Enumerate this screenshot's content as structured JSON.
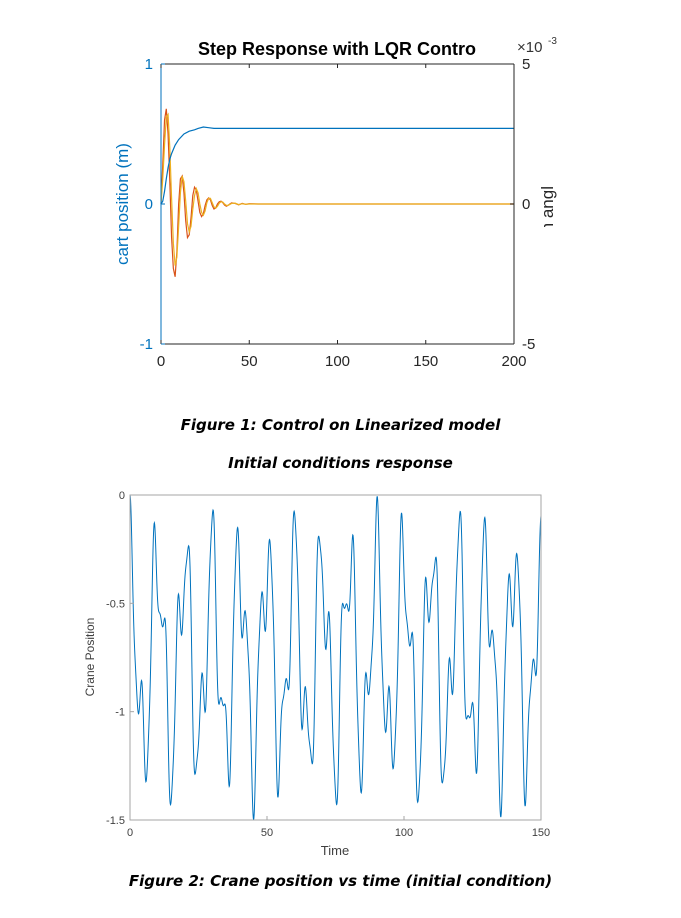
{
  "colors": {
    "cart": "#0072BD",
    "pendulum_a": "#D95319",
    "pendulum_b": "#EDB120",
    "crane": "#0072BD",
    "axis_tick_right": "#333333"
  },
  "captions": {
    "figure1": "Figure 1: Control on Linearized model",
    "section": "Initial conditions response",
    "figure2": "Figure 2: Crane position vs time (initial condition)"
  },
  "chart_data": [
    {
      "type": "line",
      "title": "Step Response with LQR Contro",
      "xlabel": "",
      "ylabel_left": "cart position (m)",
      "ylabel_right": "pendulum angle (radians",
      "right_exponent_base": "×10",
      "right_exponent_power": "-3",
      "xlim": [
        0,
        200
      ],
      "ylim_left": [
        -1,
        1
      ],
      "ylim_right": [
        -5,
        5
      ],
      "xticks": [
        "0",
        "50",
        "100",
        "150",
        "200"
      ],
      "yticks_left": [
        "-1",
        "0",
        "1"
      ],
      "yticks_right": [
        "-5",
        "0",
        "5"
      ],
      "grid": false,
      "series": [
        {
          "axis": "left",
          "points": [
            [
              0,
              0
            ],
            [
              1,
              0.02
            ],
            [
              2,
              0.09
            ],
            [
              3,
              0.18
            ],
            [
              4,
              0.26
            ],
            [
              5,
              0.32
            ],
            [
              6,
              0.36
            ],
            [
              8,
              0.42
            ],
            [
              10,
              0.46
            ],
            [
              13,
              0.5
            ],
            [
              16,
              0.52
            ],
            [
              19,
              0.53
            ],
            [
              21,
              0.54
            ],
            [
              24,
              0.55
            ],
            [
              27,
              0.545
            ],
            [
              30,
              0.54
            ],
            [
              40,
              0.54
            ],
            [
              70,
              0.54
            ],
            [
              200,
              0.54
            ]
          ]
        },
        {
          "axis": "right",
          "points": [
            [
              0,
              0
            ],
            [
              1,
              1.4
            ],
            [
              2,
              3.0
            ],
            [
              3,
              3.4
            ],
            [
              4,
              2.5
            ],
            [
              5,
              0.8
            ],
            [
              6,
              -1.2
            ],
            [
              7,
              -2.3
            ],
            [
              8,
              -2.6
            ],
            [
              9,
              -1.7
            ],
            [
              10,
              0.0
            ],
            [
              11,
              0.9
            ],
            [
              12,
              1.0
            ],
            [
              13,
              0.4
            ],
            [
              14,
              -0.6
            ],
            [
              15,
              -1.2
            ],
            [
              16,
              -1.1
            ],
            [
              17,
              -0.5
            ],
            [
              18,
              0.3
            ],
            [
              19,
              0.6
            ],
            [
              20,
              0.5
            ],
            [
              21,
              0.1
            ],
            [
              22,
              -0.3
            ],
            [
              23,
              -0.45
            ],
            [
              24,
              -0.35
            ],
            [
              25,
              -0.05
            ],
            [
              26,
              0.15
            ],
            [
              27,
              0.22
            ],
            [
              28,
              0.15
            ],
            [
              29,
              -0.05
            ],
            [
              30,
              -0.18
            ],
            [
              31,
              -0.14
            ],
            [
              32,
              0.0
            ],
            [
              33,
              0.08
            ],
            [
              34,
              0.1
            ],
            [
              35,
              0.05
            ],
            [
              36,
              -0.04
            ],
            [
              37,
              -0.08
            ],
            [
              38,
              -0.05
            ],
            [
              39,
              0.0
            ],
            [
              40,
              0.04
            ],
            [
              42,
              0.02
            ],
            [
              44,
              -0.03
            ],
            [
              46,
              0.02
            ],
            [
              48,
              -0.01
            ],
            [
              50,
              0.01
            ],
            [
              55,
              0.0
            ],
            [
              60,
              0.0
            ],
            [
              70,
              0.0
            ],
            [
              200,
              0.0
            ]
          ]
        },
        {
          "axis": "right",
          "points": [
            [
              0,
              0
            ],
            [
              1,
              0.9
            ],
            [
              2,
              2.1
            ],
            [
              3,
              3.1
            ],
            [
              4,
              3.2
            ],
            [
              5,
              2.0
            ],
            [
              6,
              0.2
            ],
            [
              7,
              -1.4
            ],
            [
              8,
              -2.2
            ],
            [
              9,
              -1.9
            ],
            [
              10,
              -0.8
            ],
            [
              11,
              0.4
            ],
            [
              12,
              1.0
            ],
            [
              13,
              0.8
            ],
            [
              14,
              0.1
            ],
            [
              15,
              -0.7
            ],
            [
              16,
              -1.0
            ],
            [
              17,
              -0.8
            ],
            [
              18,
              -0.2
            ],
            [
              19,
              0.3
            ],
            [
              20,
              0.55
            ],
            [
              21,
              0.4
            ],
            [
              22,
              0.0
            ],
            [
              23,
              -0.3
            ],
            [
              24,
              -0.4
            ],
            [
              25,
              -0.25
            ],
            [
              26,
              0.05
            ],
            [
              27,
              0.2
            ],
            [
              28,
              0.2
            ],
            [
              29,
              0.05
            ],
            [
              30,
              -0.1
            ],
            [
              31,
              -0.15
            ],
            [
              32,
              -0.08
            ],
            [
              33,
              0.03
            ],
            [
              34,
              0.08
            ],
            [
              35,
              0.07
            ],
            [
              36,
              0.0
            ],
            [
              37,
              -0.05
            ],
            [
              38,
              -0.05
            ],
            [
              40,
              0.02
            ],
            [
              42,
              0.03
            ],
            [
              44,
              -0.02
            ],
            [
              46,
              0.01
            ],
            [
              48,
              -0.01
            ],
            [
              50,
              0.0
            ],
            [
              60,
              0.0
            ],
            [
              70,
              0.0
            ],
            [
              200,
              0.0
            ]
          ]
        }
      ]
    },
    {
      "type": "line",
      "title": "",
      "xlabel": "Time",
      "ylabel": "Crane Position",
      "xlim": [
        0,
        150
      ],
      "ylim": [
        -1.5,
        0
      ],
      "xticks": [
        "0",
        "50",
        "100",
        "150"
      ],
      "yticks": [
        "-1.5",
        "-1",
        "-0.5",
        "0"
      ],
      "grid": false,
      "series": [
        {
          "generator": {
            "offset": -0.75,
            "components": [
              {
                "amplitude": 0.45,
                "period": 10.0,
                "phase": 1.5708
              },
              {
                "amplitude": 0.24,
                "period": 4.3,
                "phase": 1.5708
              },
              {
                "amplitude": 0.06,
                "period": 2.2,
                "phase": 1.5708
              }
            ],
            "x_start": 0,
            "x_end": 150,
            "step": 0.1
          }
        }
      ]
    }
  ]
}
